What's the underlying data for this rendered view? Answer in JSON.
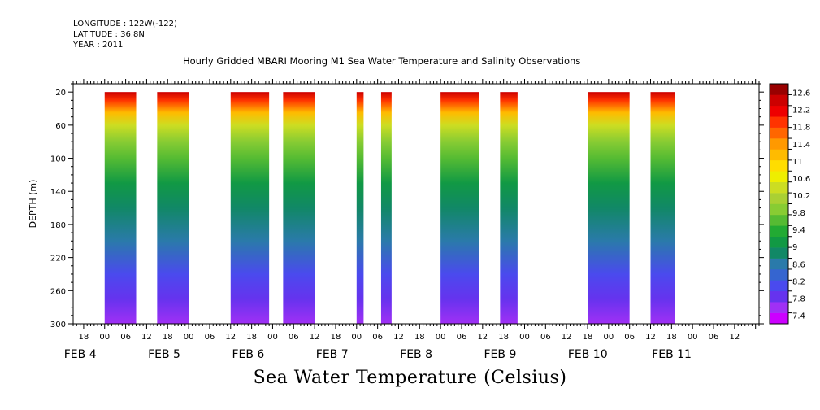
{
  "header": {
    "longitude": "LONGITUDE : 122W(-122)",
    "latitude": "LATITUDE : 36.8N",
    "year": "YEAR : 2011"
  },
  "chart_data": {
    "type": "heatmap",
    "title": "Hourly Gridded MBARI Mooring M1 Sea Water Temperature and Salinity Observations",
    "subtitle": "Sea Water Temperature (Celsius)",
    "ylabel": "DEPTH (m)",
    "xlabel": "",
    "x_unit": "hours",
    "xlim": [
      "2011-02-03T15:00",
      "2011-02-11T19:00"
    ],
    "ylim": [
      300,
      10
    ],
    "y_ticks": [
      20,
      60,
      100,
      140,
      180,
      220,
      260,
      300
    ],
    "x_hour_ticks": [
      "18",
      "00",
      "06",
      "12",
      "18",
      "00",
      "06",
      "12",
      "18",
      "00",
      "06",
      "12",
      "18",
      "00",
      "06",
      "12",
      "18",
      "00",
      "06",
      "12",
      "18",
      "00",
      "06",
      "12",
      "18",
      "00",
      "06",
      "12",
      "18",
      "00",
      "06",
      "12"
    ],
    "x_day_labels": [
      {
        "label": "FEB  4",
        "date": "2011-02-04"
      },
      {
        "label": "FEB  5",
        "date": "2011-02-05"
      },
      {
        "label": "FEB  6",
        "date": "2011-02-06"
      },
      {
        "label": "FEB  7",
        "date": "2011-02-07"
      },
      {
        "label": "FEB  8",
        "date": "2011-02-08"
      },
      {
        "label": "FEB  9",
        "date": "2011-02-09"
      },
      {
        "label": "FEB 10",
        "date": "2011-02-10"
      },
      {
        "label": "FEB 11",
        "date": "2011-02-11"
      }
    ],
    "data_depth_range": [
      20,
      300
    ],
    "data_segments": [
      {
        "start": "2011-02-04T00:00",
        "end": "2011-02-04T09:00"
      },
      {
        "start": "2011-02-04T15:00",
        "end": "2011-02-05T00:00"
      },
      {
        "start": "2011-02-05T12:00",
        "end": "2011-02-05T23:00"
      },
      {
        "start": "2011-02-06T03:00",
        "end": "2011-02-06T12:00"
      },
      {
        "start": "2011-02-07T00:00",
        "end": "2011-02-07T02:00"
      },
      {
        "start": "2011-02-07T07:00",
        "end": "2011-02-07T10:00"
      },
      {
        "start": "2011-02-08T00:00",
        "end": "2011-02-08T11:00"
      },
      {
        "start": "2011-02-08T17:00",
        "end": "2011-02-08T22:00"
      },
      {
        "start": "2011-02-09T18:00",
        "end": "2011-02-10T06:00"
      },
      {
        "start": "2011-02-10T12:00",
        "end": "2011-02-10T19:00"
      }
    ],
    "temperature_profile": [
      {
        "depth": 20,
        "temp": 12.5
      },
      {
        "depth": 30,
        "temp": 11.9
      },
      {
        "depth": 45,
        "temp": 11.1
      },
      {
        "depth": 60,
        "temp": 10.5
      },
      {
        "depth": 80,
        "temp": 10.0
      },
      {
        "depth": 100,
        "temp": 9.6
      },
      {
        "depth": 130,
        "temp": 9.2
      },
      {
        "depth": 160,
        "temp": 8.9
      },
      {
        "depth": 200,
        "temp": 8.5
      },
      {
        "depth": 240,
        "temp": 8.1
      },
      {
        "depth": 270,
        "temp": 7.8
      },
      {
        "depth": 300,
        "temp": 7.5
      }
    ],
    "colorbar": {
      "min": 7.2,
      "max": 12.8,
      "labels": [
        "12.6",
        "12.2",
        "11.8",
        "11.4",
        "11",
        "10.6",
        "10.2",
        "9.8",
        "9.4",
        "9",
        "8.6",
        "8.2",
        "7.8",
        "7.4"
      ],
      "colors": [
        "#cc00ff",
        "#a030f5",
        "#6633ee",
        "#4a4aee",
        "#3565d0",
        "#2a7aaa",
        "#118866",
        "#119944",
        "#22aa33",
        "#55bb33",
        "#88cc33",
        "#aad033",
        "#ccdd22",
        "#eeee00",
        "#ffdd00",
        "#ffbb00",
        "#ff9900",
        "#ff6600",
        "#ff3300",
        "#ee0000",
        "#cc0000",
        "#990000"
      ]
    }
  }
}
